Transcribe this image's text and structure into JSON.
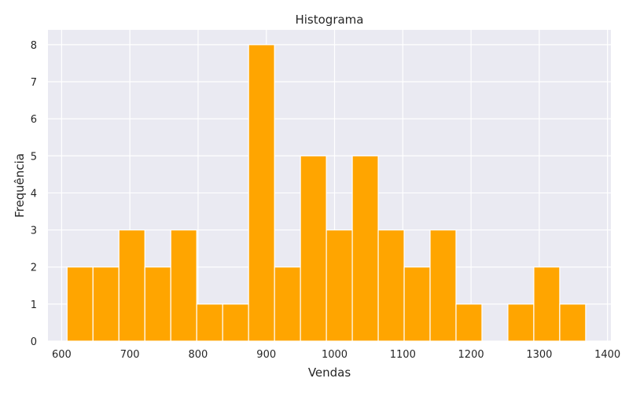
{
  "chart_data": {
    "type": "bar",
    "title": "Histograma",
    "xlabel": "Vendas",
    "ylabel": "Frequência",
    "xlim": [
      580,
      1405
    ],
    "ylim": [
      0,
      8.4
    ],
    "xticks": [
      600,
      700,
      800,
      900,
      1000,
      1100,
      1200,
      1300,
      1400
    ],
    "yticks": [
      0,
      1,
      2,
      3,
      4,
      5,
      6,
      7,
      8
    ],
    "grid": true,
    "colors": {
      "bar": "#FFA500",
      "plot_bg": "#EAEAF2",
      "grid": "#FFFFFF"
    },
    "bins": [
      {
        "start": 608,
        "end": 646,
        "count": 2
      },
      {
        "start": 646,
        "end": 684,
        "count": 2
      },
      {
        "start": 684,
        "end": 722,
        "count": 3
      },
      {
        "start": 722,
        "end": 760,
        "count": 2
      },
      {
        "start": 760,
        "end": 798,
        "count": 3
      },
      {
        "start": 798,
        "end": 836,
        "count": 1
      },
      {
        "start": 836,
        "end": 874,
        "count": 1
      },
      {
        "start": 874,
        "end": 912,
        "count": 8
      },
      {
        "start": 912,
        "end": 950,
        "count": 2
      },
      {
        "start": 950,
        "end": 988,
        "count": 5
      },
      {
        "start": 988,
        "end": 1026,
        "count": 3
      },
      {
        "start": 1026,
        "end": 1064,
        "count": 5
      },
      {
        "start": 1064,
        "end": 1102,
        "count": 3
      },
      {
        "start": 1102,
        "end": 1140,
        "count": 2
      },
      {
        "start": 1140,
        "end": 1178,
        "count": 3
      },
      {
        "start": 1178,
        "end": 1216,
        "count": 1
      },
      {
        "start": 1216,
        "end": 1254,
        "count": 0
      },
      {
        "start": 1254,
        "end": 1292,
        "count": 1
      },
      {
        "start": 1292,
        "end": 1330,
        "count": 2
      },
      {
        "start": 1330,
        "end": 1368,
        "count": 1
      }
    ]
  }
}
